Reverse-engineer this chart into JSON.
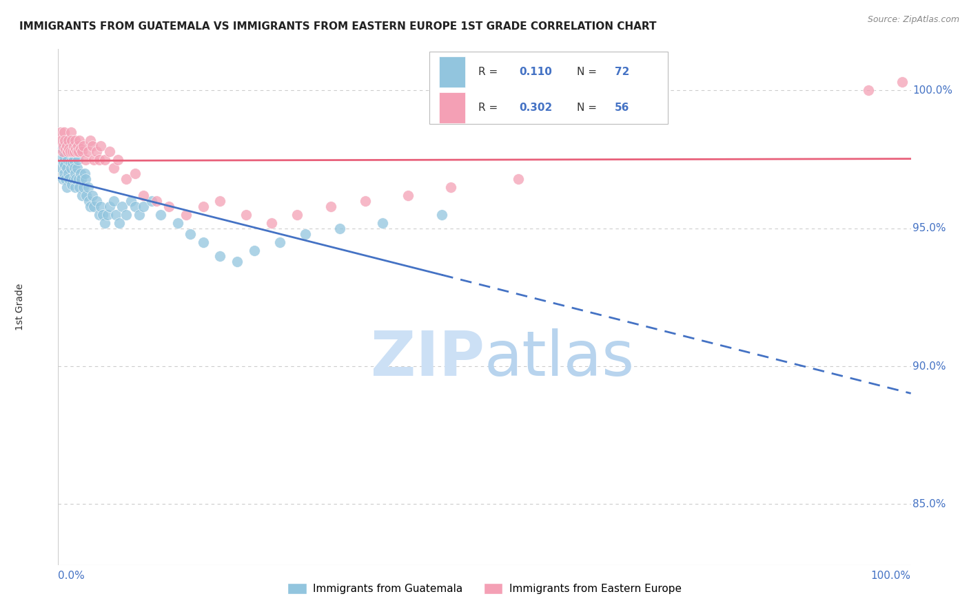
{
  "title": "IMMIGRANTS FROM GUATEMALA VS IMMIGRANTS FROM EASTERN EUROPE 1ST GRADE CORRELATION CHART",
  "source": "Source: ZipAtlas.com",
  "ylabel": "1st Grade",
  "yticks": [
    0.85,
    0.9,
    0.95,
    1.0
  ],
  "ytick_labels": [
    "85.0%",
    "90.0%",
    "95.0%",
    "100.0%"
  ],
  "xmin": 0.0,
  "xmax": 1.0,
  "ymin": 0.828,
  "ymax": 1.015,
  "R_guatemala": 0.11,
  "N_guatemala": 72,
  "R_eastern": 0.302,
  "N_eastern": 56,
  "color_guatemala": "#92c5de",
  "color_eastern": "#f4a0b5",
  "trend_blue": "#4472c4",
  "trend_pink": "#e8607a",
  "watermark_color": "#cce0f5",
  "guatemala_x": [
    0.003,
    0.004,
    0.005,
    0.005,
    0.006,
    0.007,
    0.007,
    0.008,
    0.008,
    0.009,
    0.01,
    0.01,
    0.011,
    0.012,
    0.012,
    0.013,
    0.014,
    0.015,
    0.015,
    0.016,
    0.017,
    0.018,
    0.018,
    0.019,
    0.02,
    0.02,
    0.021,
    0.022,
    0.023,
    0.024,
    0.025,
    0.026,
    0.027,
    0.028,
    0.03,
    0.031,
    0.032,
    0.033,
    0.035,
    0.036,
    0.038,
    0.04,
    0.042,
    0.045,
    0.048,
    0.05,
    0.052,
    0.055,
    0.058,
    0.06,
    0.065,
    0.068,
    0.072,
    0.075,
    0.08,
    0.085,
    0.09,
    0.095,
    0.1,
    0.11,
    0.12,
    0.14,
    0.155,
    0.17,
    0.19,
    0.21,
    0.23,
    0.26,
    0.29,
    0.33,
    0.38,
    0.45
  ],
  "guatemala_y": [
    0.975,
    0.972,
    0.979,
    0.968,
    0.974,
    0.976,
    0.97,
    0.973,
    0.98,
    0.968,
    0.972,
    0.965,
    0.975,
    0.97,
    0.982,
    0.968,
    0.974,
    0.972,
    0.978,
    0.966,
    0.974,
    0.968,
    0.975,
    0.972,
    0.97,
    0.965,
    0.968,
    0.972,
    0.975,
    0.968,
    0.965,
    0.97,
    0.968,
    0.962,
    0.965,
    0.97,
    0.968,
    0.962,
    0.965,
    0.96,
    0.958,
    0.962,
    0.958,
    0.96,
    0.955,
    0.958,
    0.955,
    0.952,
    0.955,
    0.958,
    0.96,
    0.955,
    0.952,
    0.958,
    0.955,
    0.96,
    0.958,
    0.955,
    0.958,
    0.96,
    0.955,
    0.952,
    0.948,
    0.945,
    0.94,
    0.938,
    0.942,
    0.945,
    0.948,
    0.95,
    0.952,
    0.955
  ],
  "eastern_x": [
    0.003,
    0.004,
    0.005,
    0.006,
    0.007,
    0.008,
    0.009,
    0.01,
    0.011,
    0.012,
    0.013,
    0.014,
    0.015,
    0.016,
    0.017,
    0.018,
    0.019,
    0.02,
    0.021,
    0.022,
    0.023,
    0.024,
    0.025,
    0.026,
    0.028,
    0.03,
    0.032,
    0.035,
    0.038,
    0.04,
    0.042,
    0.045,
    0.048,
    0.05,
    0.055,
    0.06,
    0.065,
    0.07,
    0.08,
    0.09,
    0.1,
    0.115,
    0.13,
    0.15,
    0.17,
    0.19,
    0.22,
    0.25,
    0.28,
    0.32,
    0.36,
    0.41,
    0.46,
    0.54,
    0.95,
    0.99
  ],
  "eastern_y": [
    0.985,
    0.982,
    0.978,
    0.98,
    0.985,
    0.982,
    0.979,
    0.98,
    0.978,
    0.982,
    0.979,
    0.978,
    0.985,
    0.982,
    0.978,
    0.98,
    0.978,
    0.982,
    0.979,
    0.978,
    0.98,
    0.978,
    0.982,
    0.979,
    0.978,
    0.98,
    0.975,
    0.978,
    0.982,
    0.98,
    0.975,
    0.978,
    0.975,
    0.98,
    0.975,
    0.978,
    0.972,
    0.975,
    0.968,
    0.97,
    0.962,
    0.96,
    0.958,
    0.955,
    0.958,
    0.96,
    0.955,
    0.952,
    0.955,
    0.958,
    0.96,
    0.962,
    0.965,
    0.968,
    1.0,
    1.003
  ],
  "legend_R_guat_text": "R =",
  "legend_R_guat_val": " 0.110",
  "legend_N_guat_text": "N =",
  "legend_N_guat_val": " 72",
  "legend_R_east_text": "R =",
  "legend_R_east_val": " 0.302",
  "legend_N_east_text": "N =",
  "legend_N_east_val": " 56"
}
